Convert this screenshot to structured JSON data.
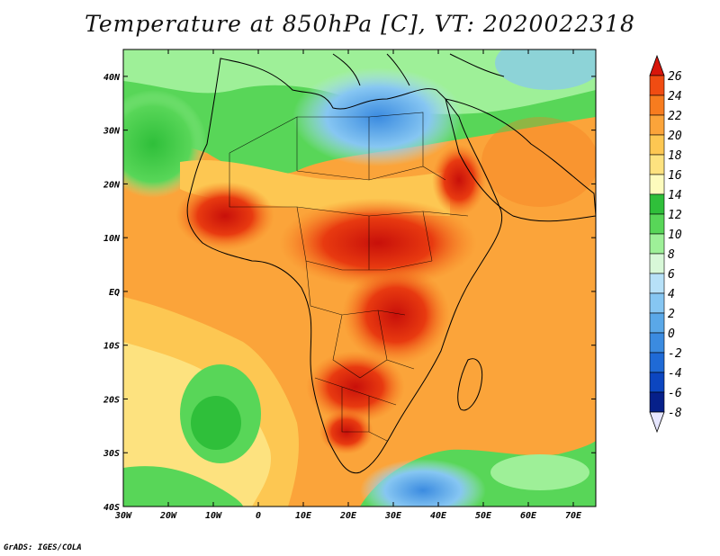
{
  "title": "Temperature at 850hPa [C], VT: 2020022318",
  "credit": "GrADS: IGES/COLA",
  "map": {
    "lon_range": [
      -30,
      75
    ],
    "lat_range": [
      -40,
      45
    ],
    "lon_ticks": [
      "30W",
      "20W",
      "10W",
      "0",
      "10E",
      "20E",
      "30E",
      "40E",
      "50E",
      "60E",
      "70E"
    ],
    "lat_ticks": [
      "40N",
      "30N",
      "20N",
      "10N",
      "EQ",
      "10S",
      "20S",
      "30S",
      "40S"
    ],
    "variable": "Temperature at 850hPa",
    "units": "C",
    "valid_time": "2020022318"
  },
  "colorbar": {
    "levels": [
      "26",
      "24",
      "22",
      "20",
      "18",
      "16",
      "14",
      "12",
      "10",
      "8",
      "6",
      "4",
      "2",
      "0",
      "-2",
      "-4",
      "-6",
      "-8"
    ],
    "colors": [
      "#d8160b",
      "#f04c12",
      "#f77c1f",
      "#fba43a",
      "#fdc752",
      "#fde27f",
      "#fdfbbd",
      "#2fbf3a",
      "#58d658",
      "#9ef098",
      "#d8f8d8",
      "#b7e1f8",
      "#86c6f2",
      "#5aa8e8",
      "#3b8be0",
      "#1f6ad6",
      "#0c46c0",
      "#06208a"
    ]
  }
}
